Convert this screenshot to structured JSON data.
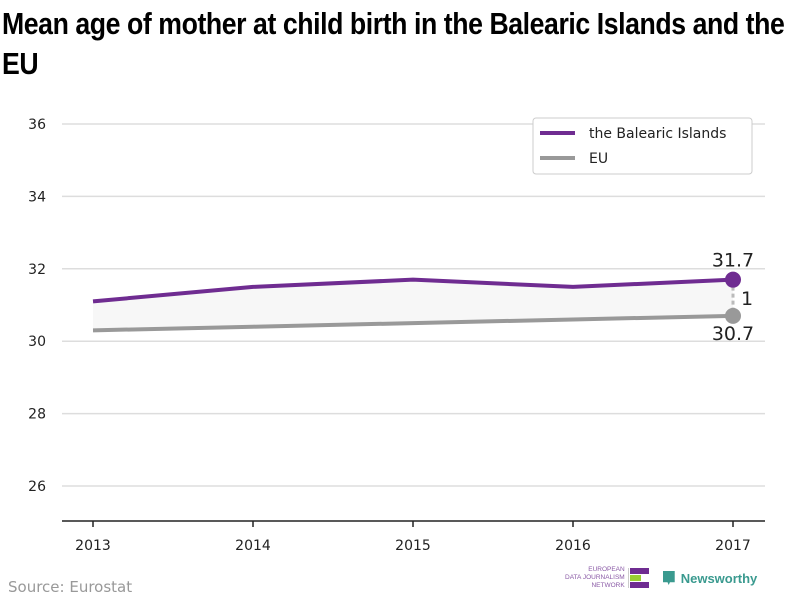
{
  "title": "Mean age of mother at child birth in the Balearic Islands and the EU",
  "source": "Source: Eurostat",
  "logos": {
    "ejn_lines": [
      "EUROPEAN",
      "DATA JOURNALISM",
      "NETWORK"
    ],
    "newsworthy": "Newsworthy"
  },
  "chart_data": {
    "type": "line",
    "x": [
      2013,
      2014,
      2015,
      2016,
      2017
    ],
    "x_tick_labels": [
      "2013",
      "2014",
      "2015",
      "2016",
      "2017"
    ],
    "ylim": [
      25,
      36.3
    ],
    "y_ticks": [
      26,
      28,
      30,
      32,
      34,
      36
    ],
    "y_tick_labels": [
      "26",
      "28",
      "30",
      "32",
      "34",
      "36"
    ],
    "grid": true,
    "legend_position": "top-right",
    "series": [
      {
        "name": "the Balearic Islands",
        "color": "#6f2c91",
        "values": [
          31.1,
          31.5,
          31.7,
          31.5,
          31.7
        ]
      },
      {
        "name": "EU",
        "color": "#999999",
        "values": [
          30.3,
          30.4,
          30.5,
          30.6,
          30.7
        ]
      }
    ],
    "annotations": {
      "last_top": "31.7",
      "last_bottom": "30.7",
      "difference": "1"
    }
  }
}
